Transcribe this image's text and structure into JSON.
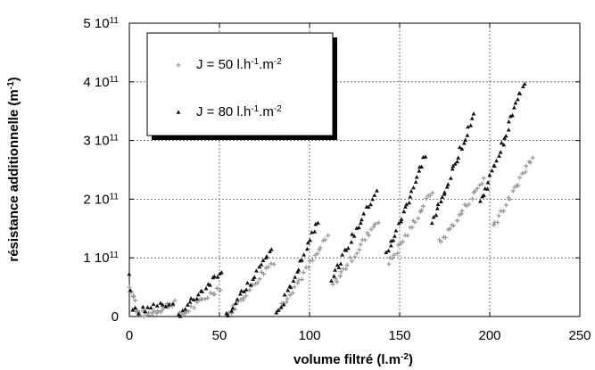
{
  "chart_data": {
    "type": "scatter",
    "title": "",
    "xlabel": "volume filtré (l.m",
    "xlabel_sup": "-2",
    "xlabel_end": ")",
    "ylabel": "résistance additionnelle (m",
    "ylabel_sup": "-1",
    "ylabel_end": ")",
    "xlim": [
      0,
      250
    ],
    "ylim": [
      0,
      500000000000
    ],
    "grid": true,
    "legend_position": "top-left",
    "x_ticks": [
      0,
      50,
      100,
      150,
      200,
      250
    ],
    "x_tick_labels": [
      "0",
      "50",
      "100",
      "150",
      "200",
      "250"
    ],
    "y_ticks": [
      0,
      100000000000,
      200000000000,
      300000000000,
      400000000000,
      500000000000
    ],
    "y_tick_labels": [
      {
        "mant": "0",
        "exp": ""
      },
      {
        "mant": "1 10",
        "exp": "11"
      },
      {
        "mant": "2 10",
        "exp": "11"
      },
      {
        "mant": "3 10",
        "exp": "11"
      },
      {
        "mant": "4 10",
        "exp": "11"
      },
      {
        "mant": "5 10",
        "exp": "11"
      }
    ],
    "colors": {
      "j50": "#9a9a9a",
      "j80": "#111111"
    },
    "series": [
      {
        "name": "J = 50 l.h-1.m-2",
        "legend_parts": [
          "J = 50 l.h",
          "-1",
          ".m",
          "-2"
        ],
        "marker": "plus",
        "color": "#9a9a9a",
        "segments": [
          {
            "x0": 0,
            "y0": 50000000000.0,
            "x1": 3,
            "y1": 30000000000.0,
            "n": 6
          },
          {
            "x0": 3,
            "y0": 10000000000.0,
            "x1": 9,
            "y1": 2000000000.0,
            "n": 8
          },
          {
            "x0": 10,
            "y0": 3000000000.0,
            "x1": 25,
            "y1": 25000000000.0,
            "n": 16
          },
          {
            "x0": 28,
            "y0": 1000000000.0,
            "x1": 50,
            "y1": 50000000000.0,
            "n": 18
          },
          {
            "x0": 54,
            "y0": 2000000000.0,
            "x1": 80,
            "y1": 95000000000.0,
            "n": 22
          },
          {
            "x0": 82,
            "y0": 10000000000.0,
            "x1": 110,
            "y1": 135000000000.0,
            "n": 24
          },
          {
            "x0": 113,
            "y0": 55000000000.0,
            "x1": 138,
            "y1": 165000000000.0,
            "n": 22
          },
          {
            "x0": 144,
            "y0": 90000000000.0,
            "x1": 168,
            "y1": 215000000000.0,
            "n": 22
          },
          {
            "x0": 172,
            "y0": 125000000000.0,
            "x1": 197,
            "y1": 235000000000.0,
            "n": 22
          },
          {
            "x0": 202,
            "y0": 155000000000.0,
            "x1": 224,
            "y1": 275000000000.0,
            "n": 20
          }
        ]
      },
      {
        "name": "J = 80 l.h-1.m-2",
        "legend_parts": [
          "J = 80 l.h",
          "-1",
          ".m",
          "-2"
        ],
        "marker": "triangle",
        "color": "#111111",
        "segments": [
          {
            "x0": 0,
            "y0": 78000000000.0,
            "x1": 1,
            "y1": 45000000000.0,
            "n": 2
          },
          {
            "x0": 2,
            "y0": 8000000000.0,
            "x1": 24,
            "y1": 25000000000.0,
            "n": 14
          },
          {
            "x0": 27,
            "y0": 2000000000.0,
            "x1": 51,
            "y1": 80000000000.0,
            "n": 20
          },
          {
            "x0": 54,
            "y0": 2000000000.0,
            "x1": 79,
            "y1": 115000000000.0,
            "n": 22
          },
          {
            "x0": 82,
            "y0": 3000000000.0,
            "x1": 105,
            "y1": 165000000000.0,
            "n": 22
          },
          {
            "x0": 112,
            "y0": 65000000000.0,
            "x1": 137,
            "y1": 215000000000.0,
            "n": 24
          },
          {
            "x0": 143,
            "y0": 105000000000.0,
            "x1": 164,
            "y1": 275000000000.0,
            "n": 24
          },
          {
            "x0": 168,
            "y0": 160000000000.0,
            "x1": 191,
            "y1": 345000000000.0,
            "n": 26
          },
          {
            "x0": 195,
            "y0": 195000000000.0,
            "x1": 219,
            "y1": 400000000000.0,
            "n": 28
          }
        ]
      }
    ]
  }
}
